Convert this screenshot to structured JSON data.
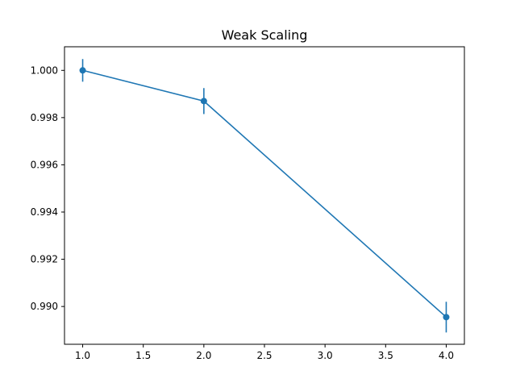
{
  "chart_data": {
    "type": "line",
    "title": "Weak Scaling",
    "xlabel": "",
    "ylabel": "",
    "xlim": [
      0.85,
      4.15
    ],
    "ylim": [
      0.9884,
      1.001
    ],
    "x_ticks": [
      1.0,
      1.5,
      2.0,
      2.5,
      3.0,
      3.5,
      4.0
    ],
    "x_tick_labels": [
      "1.0",
      "1.5",
      "2.0",
      "2.5",
      "3.0",
      "3.5",
      "4.0"
    ],
    "y_ticks": [
      0.99,
      0.992,
      0.994,
      0.996,
      0.998,
      1.0
    ],
    "y_tick_labels": [
      "0.990",
      "0.992",
      "0.994",
      "0.996",
      "0.998",
      "1.000"
    ],
    "grid": false,
    "series": [
      {
        "color": "#1f77b4",
        "x": [
          1,
          2,
          4
        ],
        "y": [
          1.0,
          0.9987,
          0.98955
        ],
        "error": [
          0.00048,
          0.00055,
          0.00065
        ]
      }
    ]
  }
}
